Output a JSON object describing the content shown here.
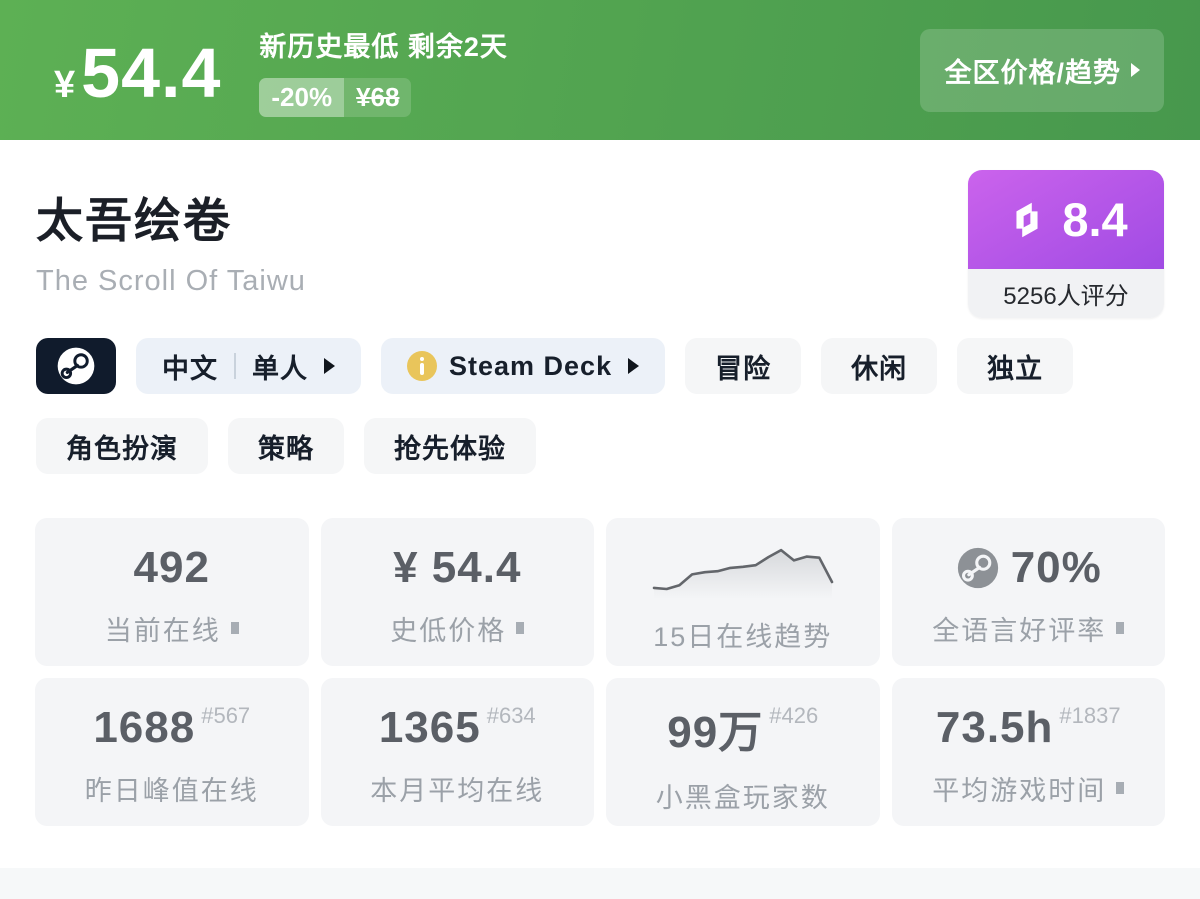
{
  "header": {
    "currency": "¥",
    "price": "54.4",
    "promo_line": "新历史最低 剩余2天",
    "discount": "-20%",
    "original_price": "¥68",
    "trend_button": "全区价格/趋势",
    "bg_from": "#5db054",
    "bg_to": "#47984d"
  },
  "game": {
    "title": "太吾绘卷",
    "subtitle": "The Scroll Of Taiwu"
  },
  "rating": {
    "score": "8.4",
    "count_label": "5256人评分",
    "accent_from": "#cb63ec",
    "accent_to": "#a04be4",
    "logo_icon": "heybox-logo-icon"
  },
  "tags": {
    "platform_icon": "steam-icon",
    "language": {
      "part1": "中文",
      "part2": "单人"
    },
    "steam_deck": {
      "label": "Steam Deck",
      "icon": "info-icon",
      "icon_color": "#e9c55b"
    },
    "genres_row1": [
      "冒险",
      "休闲",
      "独立"
    ],
    "genres_row2": [
      "角色扮演",
      "策略",
      "抢先体验"
    ]
  },
  "stats": {
    "cards": [
      {
        "value": "492",
        "label": "当前在线"
      },
      {
        "value": "¥ 54.4",
        "label": "史低价格"
      },
      {
        "label": "15日在线趋势"
      },
      {
        "value": "70%",
        "label": "全语言好评率",
        "icon": "steam-icon"
      },
      {
        "value": "1688",
        "rank": "#567",
        "label": "昨日峰值在线"
      },
      {
        "value": "1365",
        "rank": "#634",
        "label": "本月平均在线"
      },
      {
        "value": "99万",
        "rank": "#426",
        "label": "小黑盒玩家数"
      },
      {
        "value": "73.5h",
        "rank": "#1837",
        "label": "平均游戏时间"
      }
    ]
  },
  "chart_data": {
    "type": "area",
    "title": "15日在线趋势",
    "x_days": 15,
    "values": [
      15,
      13,
      20,
      40,
      44,
      46,
      52,
      54,
      57,
      72,
      85,
      66,
      73,
      71,
      26
    ],
    "ylim": [
      0,
      100
    ],
    "grid": false,
    "line_color": "#63666b",
    "fill_from": "#d7d9dc",
    "fill_to": "#f4f5f7"
  }
}
